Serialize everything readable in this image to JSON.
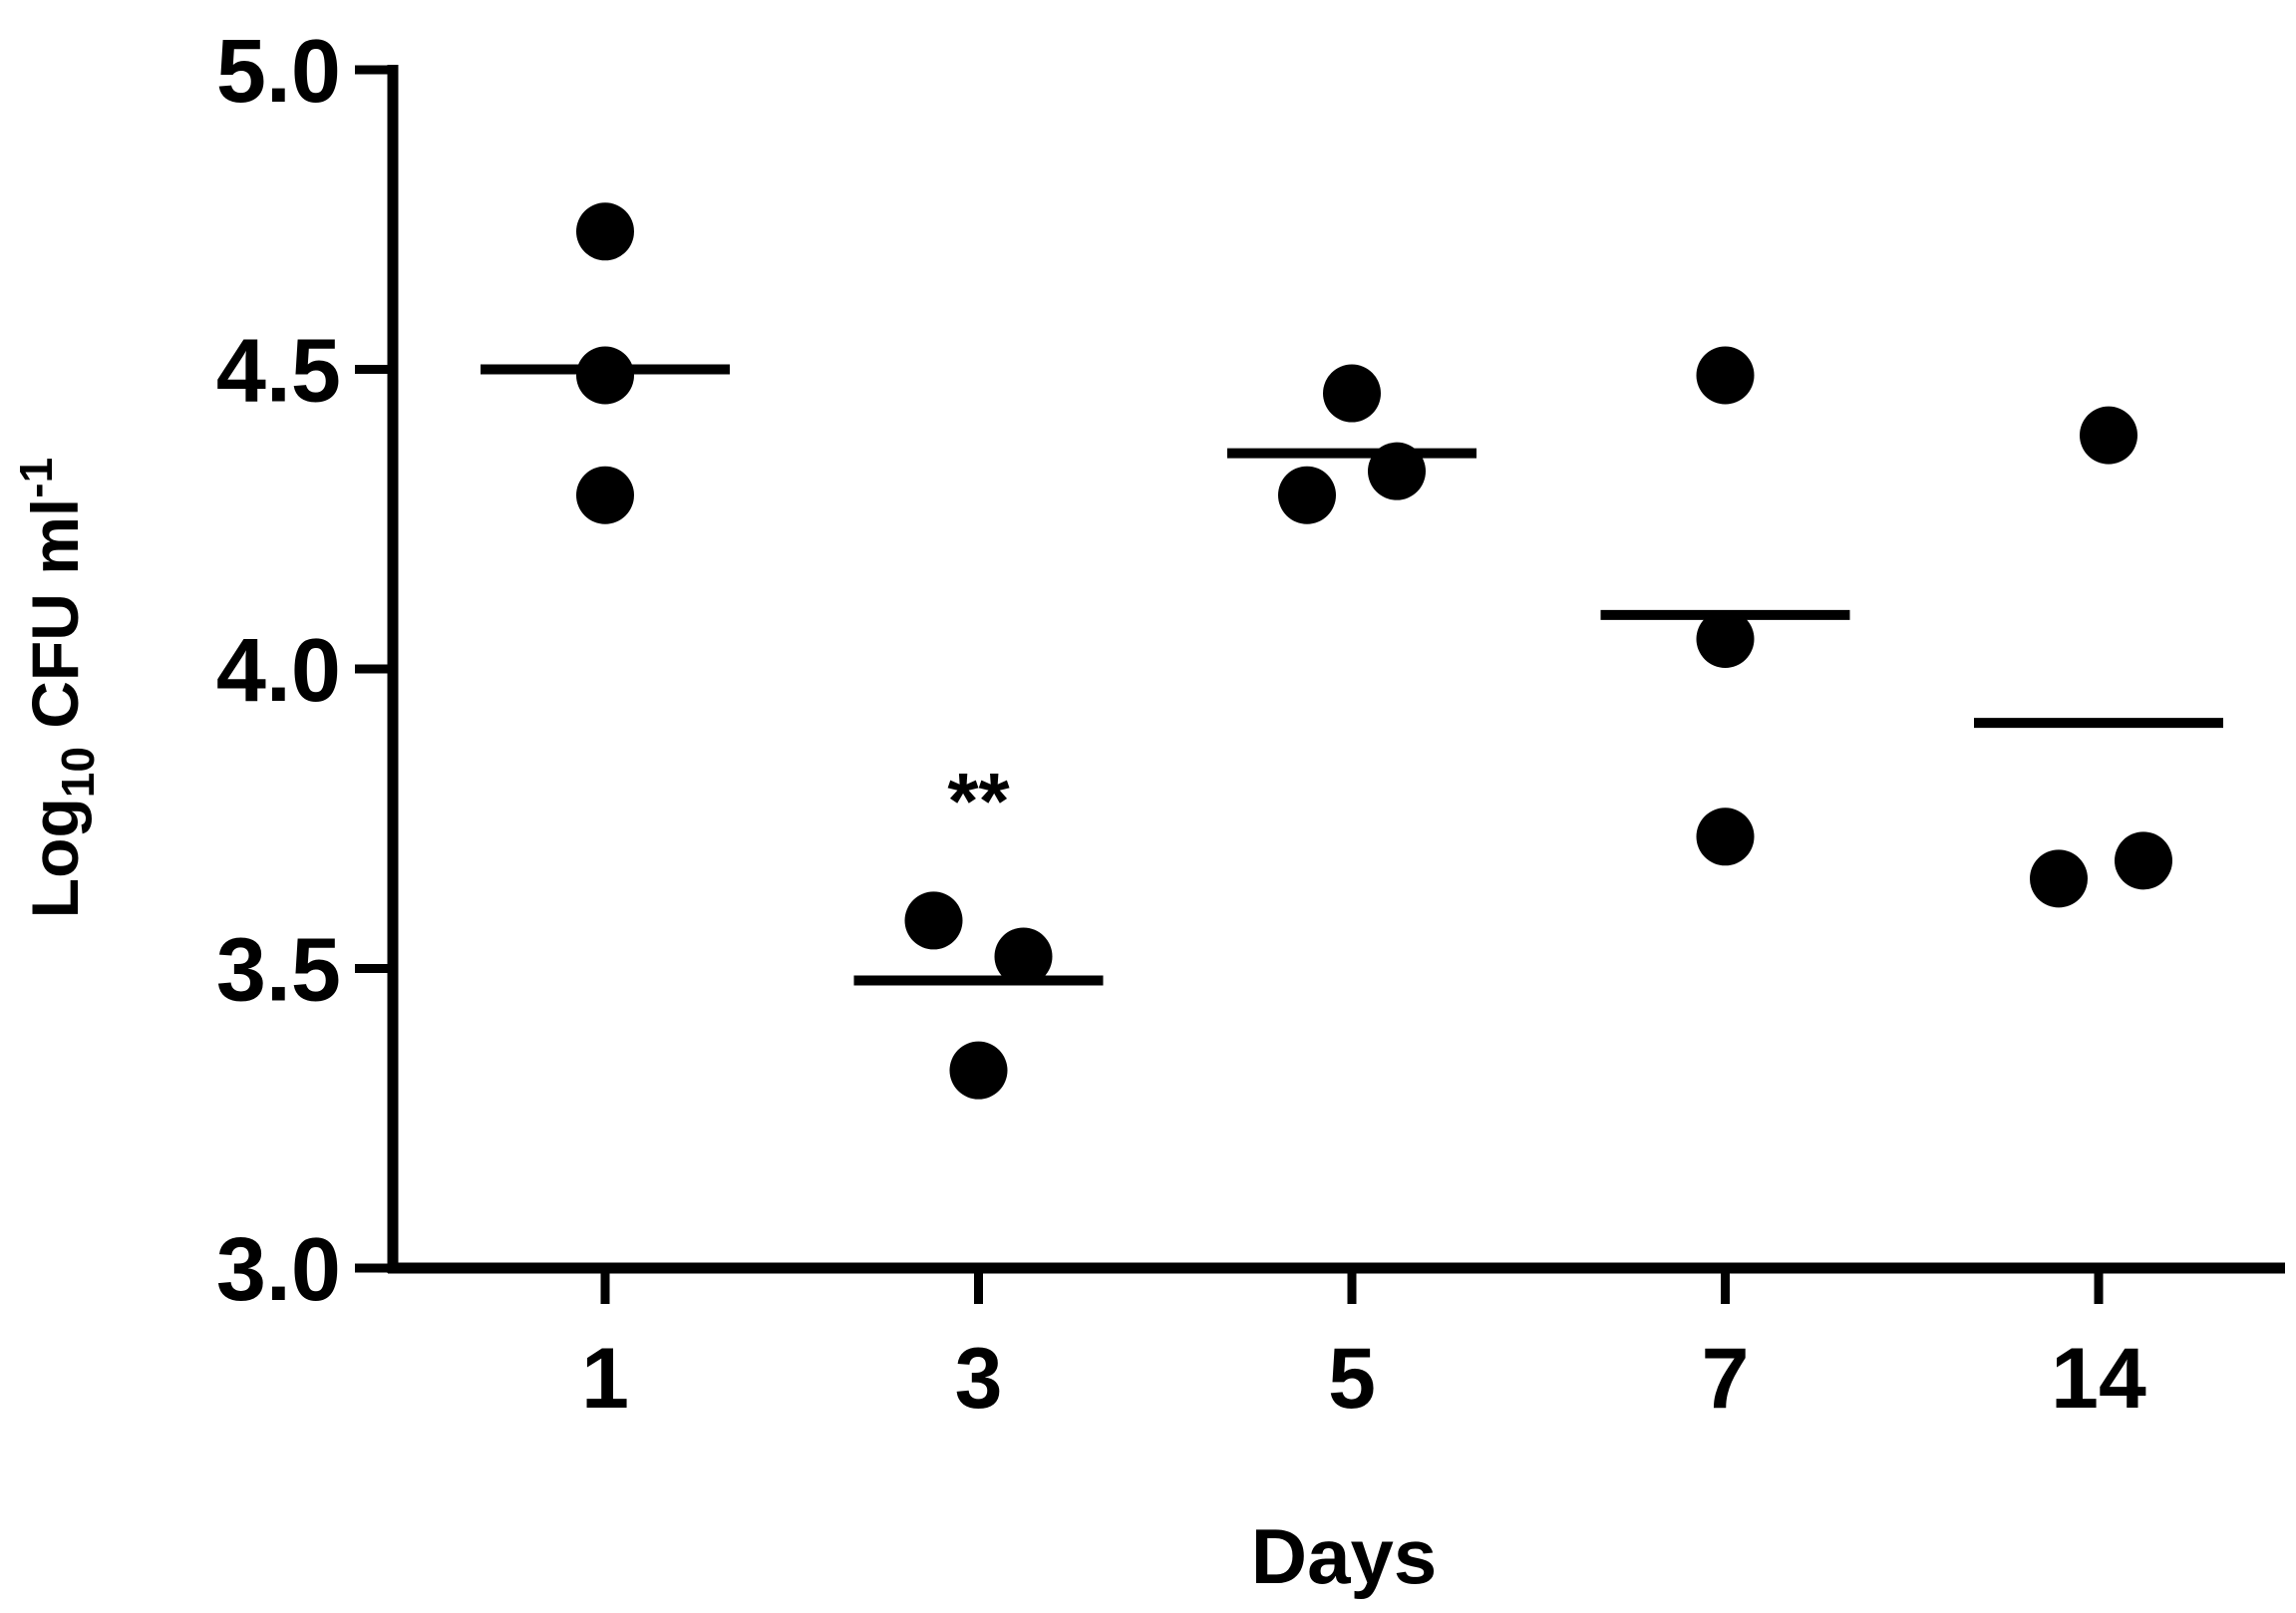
{
  "chart_data": {
    "type": "dotplot",
    "categories": [
      "1",
      "3",
      "5",
      "7",
      "14"
    ],
    "points": [
      [
        4.73,
        4.49,
        4.29
      ],
      [
        3.58,
        3.52,
        3.33
      ],
      [
        4.46,
        4.33,
        4.29
      ],
      [
        4.49,
        4.05,
        3.72
      ],
      [
        4.39,
        3.68,
        3.65
      ]
    ],
    "means": [
      4.5,
      3.48,
      4.36,
      4.09,
      3.91
    ],
    "color": "#000000",
    "ylim": [
      3,
      5
    ],
    "yticks": [
      {
        "value": 3,
        "label": "3.0"
      },
      3.5,
      {
        "value": 4,
        "label": "4.0"
      },
      4.5,
      {
        "value": 5,
        "label": "5.0"
      }
    ],
    "x_label": "Days",
    "y_label": {
      "base": "Log",
      "sub": "10",
      "main": " CFU ml",
      "sup": "-1"
    },
    "annotations": [
      {
        "text": "**",
        "category": 1,
        "y": 3.8
      }
    ]
  }
}
